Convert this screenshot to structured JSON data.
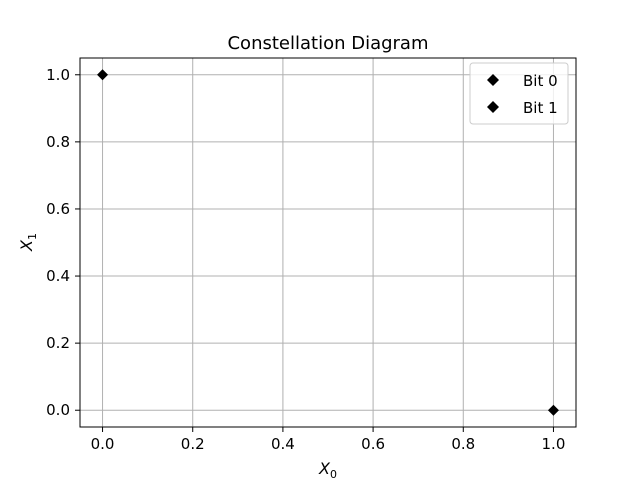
{
  "chart_data": {
    "type": "scatter",
    "title": "Constellation Diagram",
    "xlabel": "X",
    "xlabel_sub": "0",
    "ylabel": "X",
    "ylabel_sub": "1",
    "xlim": [
      -0.05,
      1.05
    ],
    "ylim": [
      -0.05,
      1.05
    ],
    "xticks": [
      0.0,
      0.2,
      0.4,
      0.6,
      0.8,
      1.0
    ],
    "yticks": [
      0.0,
      0.2,
      0.4,
      0.6,
      0.8,
      1.0
    ],
    "xtick_labels": [
      "0.0",
      "0.2",
      "0.4",
      "0.6",
      "0.8",
      "1.0"
    ],
    "ytick_labels": [
      "0.0",
      "0.2",
      "0.4",
      "0.6",
      "0.8",
      "1.0"
    ],
    "grid": true,
    "legend_position": "top-right",
    "series": [
      {
        "name": "Bit 0",
        "marker": "diamond",
        "color": "#000000",
        "points": [
          {
            "x": 1.0,
            "y": 0.0
          }
        ]
      },
      {
        "name": "Bit 1",
        "marker": "diamond",
        "color": "#000000",
        "points": [
          {
            "x": 0.0,
            "y": 1.0
          }
        ]
      }
    ]
  }
}
